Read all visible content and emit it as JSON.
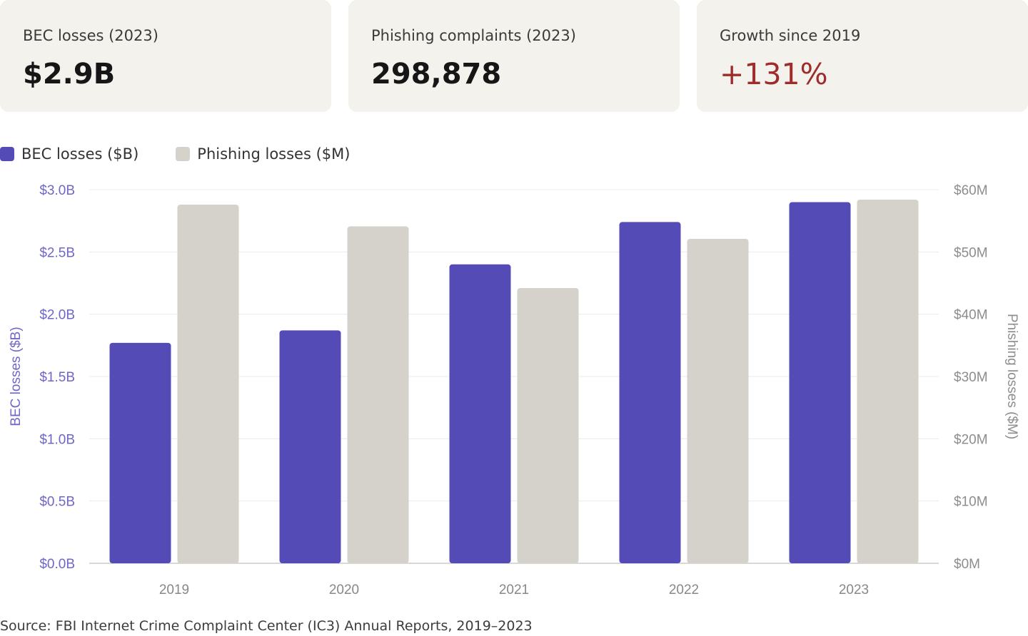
{
  "stats": [
    {
      "label": "BEC losses (2023)",
      "value": "$2.9B",
      "accent": false
    },
    {
      "label": "Phishing complaints (2023)",
      "value": "298,878",
      "accent": false
    },
    {
      "label": "Growth since 2019",
      "value": "+131%",
      "accent": true
    }
  ],
  "colors": {
    "bec": "#544bb6",
    "phishing": "#d4d2cb",
    "left_axis": "#6f67c8",
    "right_axis": "#8d8d8d",
    "accent": "#a02b2b"
  },
  "chart_data": {
    "type": "bar",
    "categories": [
      "2019",
      "2020",
      "2021",
      "2022",
      "2023"
    ],
    "series": [
      {
        "name": "BEC losses ($B)",
        "axis": "left",
        "values": [
          1.77,
          1.87,
          2.4,
          2.74,
          2.9
        ]
      },
      {
        "name": "Phishing losses ($M)",
        "axis": "right",
        "values": [
          57.6,
          54.1,
          44.2,
          52.1,
          58.4
        ]
      }
    ],
    "ylabel_left": "BEC losses ($B)",
    "ylabel_right": "Phishing losses ($M)",
    "ylim_left": [
      0,
      3.0
    ],
    "ylim_right": [
      0,
      60
    ],
    "yticks_left": [
      "$0.0B",
      "$0.5B",
      "$1.0B",
      "$1.5B",
      "$2.0B",
      "$2.5B",
      "$3.0B"
    ],
    "yticks_right": [
      "$0M",
      "$10M",
      "$20M",
      "$30M",
      "$40M",
      "$50M",
      "$60M"
    ],
    "grid": true,
    "legend_position": "top-left"
  },
  "source": "Source: FBI Internet Crime Complaint Center (IC3) Annual Reports, 2019–2023"
}
